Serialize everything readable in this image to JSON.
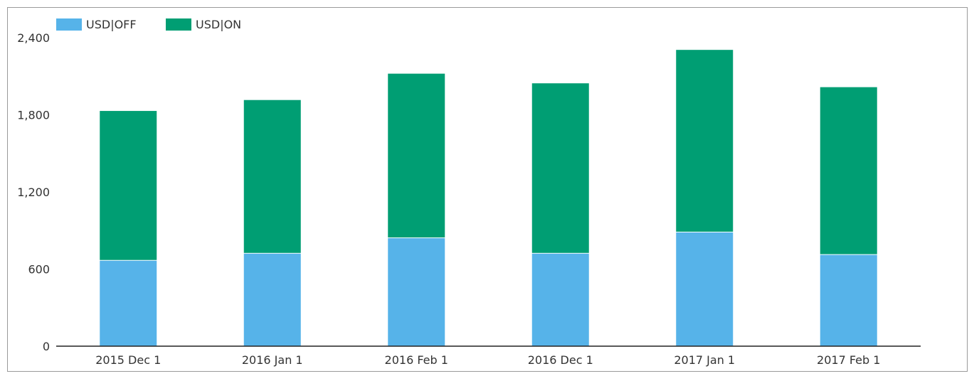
{
  "chart_data": {
    "type": "bar",
    "stacked": true,
    "categories": [
      "2015 Dec 1",
      "2016 Jan 1",
      "2016 Feb 1",
      "2016 Dec 1",
      "2017 Jan 1",
      "2017 Feb 1"
    ],
    "series": [
      {
        "name": "USD|OFF",
        "color": "#56b3e9",
        "values": [
          665,
          720,
          840,
          720,
          885,
          710
        ]
      },
      {
        "name": "USD|ON",
        "color": "#009e73",
        "values": [
          1165,
          1195,
          1280,
          1325,
          1420,
          1305
        ]
      }
    ],
    "ylim": [
      0,
      2400
    ],
    "yticks": [
      0,
      600,
      1200,
      1800,
      2400
    ],
    "ytick_labels": [
      "0",
      "600",
      "1,200",
      "1,800",
      "2,400"
    ],
    "legend_position": "top-left",
    "grid": false,
    "title": "",
    "xlabel": "",
    "ylabel": ""
  }
}
